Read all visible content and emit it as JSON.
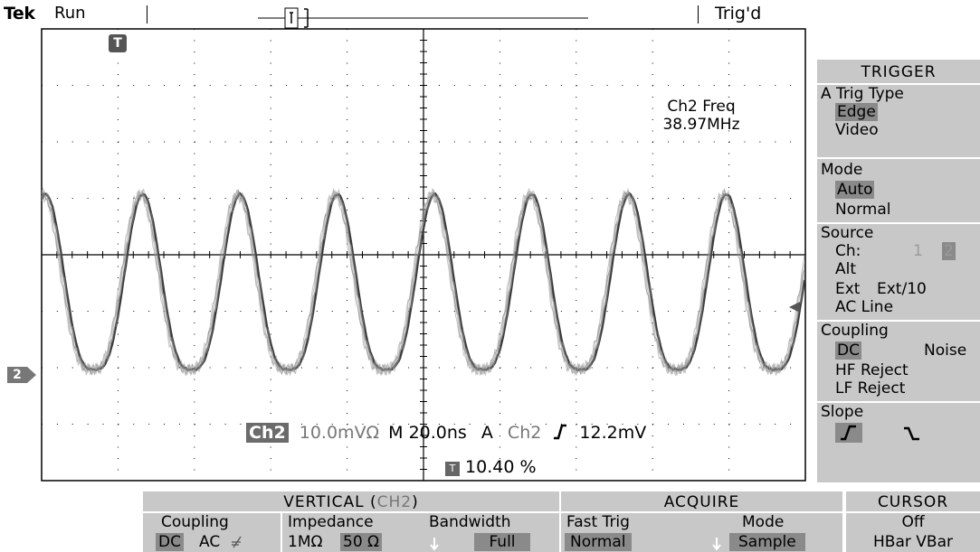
{
  "top": {
    "brand": "Tek",
    "state": "Run",
    "trigger_status": "Trig'd"
  },
  "screen": {
    "measurement_label": "Ch2 Freq",
    "measurement_value": "38.97MHz",
    "channel_marker": "2",
    "trigger_marker": "T",
    "readout": {
      "channel": "Ch2",
      "volts_div": "10.0mVΩ",
      "timebase": "M 20.0ns",
      "trig_mode": "A",
      "trig_source": "Ch2",
      "trig_level": "12.2mV",
      "trig_position": "10.40 %"
    }
  },
  "trigger_menu": {
    "title": "TRIGGER",
    "trig_type_label": "A Trig Type",
    "trig_type_options": [
      "Edge",
      "Video"
    ],
    "trig_type_selected": "Edge",
    "mode_label": "Mode",
    "mode_options": [
      "Auto",
      "Normal"
    ],
    "mode_selected": "Auto",
    "source_label": "Source",
    "source_ch_label": "Ch:",
    "source_ch_options": [
      "1",
      "2"
    ],
    "source_ch_selected": "2",
    "source_alt": "Alt",
    "source_ext": "Ext",
    "source_ext10": "Ext/10",
    "source_acline": "AC Line",
    "coupling_label": "Coupling",
    "coupling_dc": "DC",
    "coupling_noise": "Noise",
    "coupling_hf": "HF Reject",
    "coupling_lf": "LF Reject",
    "slope_label": "Slope",
    "slope_selected": "rising"
  },
  "bottom_menus": {
    "vertical_title": "VERTICAL (",
    "vertical_ch": "CH2",
    "vertical_close": ")",
    "coupling_label": "Coupling",
    "coupling_dc": "DC",
    "coupling_ac": "AC",
    "impedance_label": "Impedance",
    "impedance_1m": "1MΩ",
    "impedance_50": "50 Ω",
    "bandwidth_label": "Bandwidth",
    "bandwidth_value": "Full",
    "acquire_title": "ACQUIRE",
    "fast_trig_label": "Fast Trig",
    "fast_trig_value": "Normal",
    "mode_label": "Mode",
    "mode_value": "Sample",
    "cursor_title": "CURSOR",
    "cursor_value": "Off",
    "cursor_options": "HBar VBar"
  },
  "colors": {
    "menu_bg": "#c8c8c8",
    "selected_bg": "#8a8a8a",
    "trace": "#3a3a3a",
    "grid": "#000000"
  }
}
